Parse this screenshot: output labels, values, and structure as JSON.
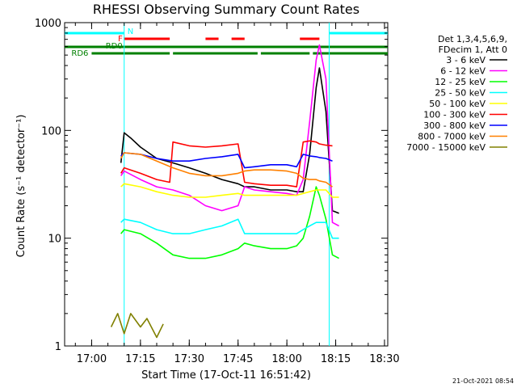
{
  "chart_data": {
    "type": "line",
    "title": "RHESSI Observing Summary Count Rates",
    "xlabel": "Start Time (17-Oct-11 16:51:42)",
    "ylabel": "Count Rate (s⁻¹ detector⁻¹)",
    "y_scale": "log",
    "ylim": [
      1,
      1000
    ],
    "xlim": [
      "16:51:42",
      "18:31:00"
    ],
    "x_ticks": [
      "17:00",
      "17:15",
      "17:30",
      "17:45",
      "18:00",
      "18:15",
      "18:30"
    ],
    "y_ticks": [
      "1",
      "10",
      "100",
      "1000"
    ],
    "legend_header": [
      "Det 1,3,4,5,6,9,",
      "FDecim 1, Att 0"
    ],
    "legend_position": "top-right",
    "timestamp": "21-Oct-2021 08:54",
    "flag_labels": {
      "n": "N",
      "f": "F",
      "rd0": "RD0",
      "rd6": "RD6"
    },
    "series": [
      {
        "name": "3 - 6 keV",
        "color": "#000000",
        "x": [
          "16:51:42",
          "17:05:00",
          "17:09:00",
          "17:10:00",
          "17:12:00",
          "17:15:00",
          "17:20:00",
          "17:25:00",
          "17:30:00",
          "17:35:00",
          "17:40:00",
          "17:45:00",
          "17:47:00",
          "17:50:00",
          "17:55:00",
          "18:00:00",
          "18:03:00",
          "18:05:00",
          "18:07:00",
          "18:09:00",
          "18:10:00",
          "18:12:00",
          "18:14:00",
          "18:16:00"
        ],
        "y": [
          null,
          null,
          50,
          95,
          85,
          70,
          55,
          50,
          45,
          40,
          35,
          32,
          30,
          30,
          28,
          28,
          27,
          27,
          60,
          250,
          380,
          150,
          18,
          17
        ]
      },
      {
        "name": "6 - 12 keV",
        "color": "#ff00ff",
        "x": [
          "16:51:42",
          "17:05:00",
          "17:09:00",
          "17:10:00",
          "17:15:00",
          "17:20:00",
          "17:25:00",
          "17:30:00",
          "17:35:00",
          "17:40:00",
          "17:45:00",
          "17:47:00",
          "17:50:00",
          "17:55:00",
          "18:00:00",
          "18:03:00",
          "18:05:00",
          "18:07:00",
          "18:09:00",
          "18:10:00",
          "18:12:00",
          "18:14:00",
          "18:16:00"
        ],
        "y": [
          null,
          null,
          38,
          42,
          35,
          30,
          28,
          25,
          20,
          18,
          20,
          30,
          28,
          27,
          26,
          25,
          35,
          120,
          450,
          620,
          300,
          14,
          13
        ]
      },
      {
        "name": "12 - 25 keV",
        "color": "#00ff00",
        "x": [
          "16:51:42",
          "17:05:00",
          "17:09:00",
          "17:10:00",
          "17:15:00",
          "17:20:00",
          "17:25:00",
          "17:30:00",
          "17:35:00",
          "17:40:00",
          "17:45:00",
          "17:47:00",
          "17:50:00",
          "17:55:00",
          "18:00:00",
          "18:03:00",
          "18:05:00",
          "18:07:00",
          "18:09:00",
          "18:10:00",
          "18:12:00",
          "18:14:00",
          "18:16:00"
        ],
        "y": [
          null,
          null,
          11,
          12,
          11,
          9,
          7,
          6.5,
          6.5,
          7,
          8,
          9,
          8.5,
          8,
          8,
          8.5,
          10,
          16,
          30,
          25,
          15,
          7,
          6.5
        ]
      },
      {
        "name": "25 - 50 keV",
        "color": "#00ffff",
        "x": [
          "16:51:42",
          "17:05:00",
          "17:09:00",
          "17:10:00",
          "17:15:00",
          "17:20:00",
          "17:25:00",
          "17:30:00",
          "17:35:00",
          "17:40:00",
          "17:45:00",
          "17:47:00",
          "17:50:00",
          "17:55:00",
          "18:00:00",
          "18:03:00",
          "18:05:00",
          "18:07:00",
          "18:09:00",
          "18:10:00",
          "18:12:00",
          "18:14:00",
          "18:16:00"
        ],
        "y": [
          null,
          null,
          14,
          15,
          14,
          12,
          11,
          11,
          12,
          13,
          15,
          11,
          11,
          11,
          11,
          11,
          12,
          13,
          14,
          14,
          14,
          10,
          10
        ]
      },
      {
        "name": "50 - 100 keV",
        "color": "#ffff00",
        "x": [
          "16:51:42",
          "17:05:00",
          "17:09:00",
          "17:10:00",
          "17:15:00",
          "17:20:00",
          "17:25:00",
          "17:30:00",
          "17:35:00",
          "17:40:00",
          "17:45:00",
          "17:47:00",
          "17:50:00",
          "17:55:00",
          "18:00:00",
          "18:03:00",
          "18:05:00",
          "18:07:00",
          "18:09:00",
          "18:10:00",
          "18:12:00",
          "18:14:00",
          "18:16:00"
        ],
        "y": [
          null,
          null,
          30,
          32,
          30,
          27,
          25,
          24,
          24,
          25,
          26,
          25,
          25,
          25,
          25,
          25,
          26,
          27,
          28,
          28,
          28,
          24,
          24
        ]
      },
      {
        "name": "100 - 300 keV",
        "color": "#ff0000",
        "x": [
          "16:51:42",
          "17:05:00",
          "17:09:00",
          "17:10:00",
          "17:15:00",
          "17:20:00",
          "17:24:00",
          "17:25:00",
          "17:30:00",
          "17:35:00",
          "17:40:00",
          "17:45:00",
          "17:47:00",
          "17:50:00",
          "17:55:00",
          "18:00:00",
          "18:03:00",
          "18:05:00",
          "18:07:00",
          "18:09:00",
          "18:10:00",
          "18:12:00",
          "18:14:00",
          "18:16:00"
        ],
        "y": [
          null,
          null,
          40,
          45,
          40,
          35,
          33,
          78,
          72,
          70,
          72,
          75,
          33,
          32,
          31,
          31,
          30,
          78,
          80,
          78,
          75,
          73,
          72,
          null
        ]
      },
      {
        "name": "300 - 800 keV",
        "color": "#0000ff",
        "x": [
          "16:51:42",
          "17:05:00",
          "17:09:00",
          "17:10:00",
          "17:15:00",
          "17:20:00",
          "17:25:00",
          "17:30:00",
          "17:35:00",
          "17:40:00",
          "17:45:00",
          "17:47:00",
          "17:50:00",
          "17:55:00",
          "18:00:00",
          "18:03:00",
          "18:05:00",
          "18:07:00",
          "18:09:00",
          "18:10:00",
          "18:12:00",
          "18:14:00",
          "18:16:00"
        ],
        "y": [
          null,
          null,
          58,
          62,
          60,
          55,
          52,
          52,
          55,
          57,
          60,
          45,
          46,
          48,
          48,
          46,
          60,
          58,
          57,
          56,
          55,
          52,
          null
        ]
      },
      {
        "name": "800 - 7000 keV",
        "color": "#ff8000",
        "x": [
          "16:51:42",
          "17:05:00",
          "17:09:00",
          "17:10:00",
          "17:15:00",
          "17:20:00",
          "17:25:00",
          "17:30:00",
          "17:35:00",
          "17:40:00",
          "17:45:00",
          "17:47:00",
          "17:50:00",
          "17:55:00",
          "18:00:00",
          "18:03:00",
          "18:05:00",
          "18:07:00",
          "18:09:00",
          "18:10:00",
          "18:12:00",
          "18:14:00",
          "18:16:00"
        ],
        "y": [
          null,
          null,
          55,
          62,
          60,
          52,
          45,
          40,
          38,
          38,
          40,
          42,
          43,
          43,
          42,
          40,
          36,
          35,
          35,
          34,
          33,
          30,
          null
        ]
      },
      {
        "name": "7000 - 15000 keV",
        "color": "#808000",
        "x": [
          "16:51:42",
          "17:05:00",
          "17:06:00",
          "17:08:00",
          "17:10:00",
          "17:12:00",
          "17:15:00",
          "17:17:00",
          "17:20:00",
          "17:22:00",
          "17:25:00"
        ],
        "y": [
          null,
          null,
          1.5,
          2,
          1.3,
          2,
          1.5,
          1.8,
          1.2,
          1.6,
          null
        ]
      }
    ],
    "flags": [
      {
        "name": "N",
        "color": "#00ffff",
        "intervals": [
          [
            "16:51:42",
            "17:10:00"
          ],
          [
            "18:13:00",
            "18:31:00"
          ]
        ]
      },
      {
        "name": "F",
        "color": "#ff0000",
        "intervals": [
          [
            "17:10:00",
            "17:24:00"
          ],
          [
            "17:35:00",
            "17:39:00"
          ],
          [
            "17:43:00",
            "17:47:00"
          ],
          [
            "18:04:00",
            "18:10:00"
          ]
        ]
      },
      {
        "name": "RD0",
        "color": "#008000",
        "intervals": [
          [
            "16:51:42",
            "18:31:00"
          ]
        ]
      },
      {
        "name": "RD6",
        "color": "#008000",
        "intervals": [
          [
            "17:00:00",
            "17:24:00"
          ],
          [
            "17:25:00",
            "17:51:00"
          ],
          [
            "17:52:00",
            "18:07:00"
          ],
          [
            "18:08:00",
            "18:31:00"
          ]
        ]
      }
    ],
    "grid": false
  }
}
